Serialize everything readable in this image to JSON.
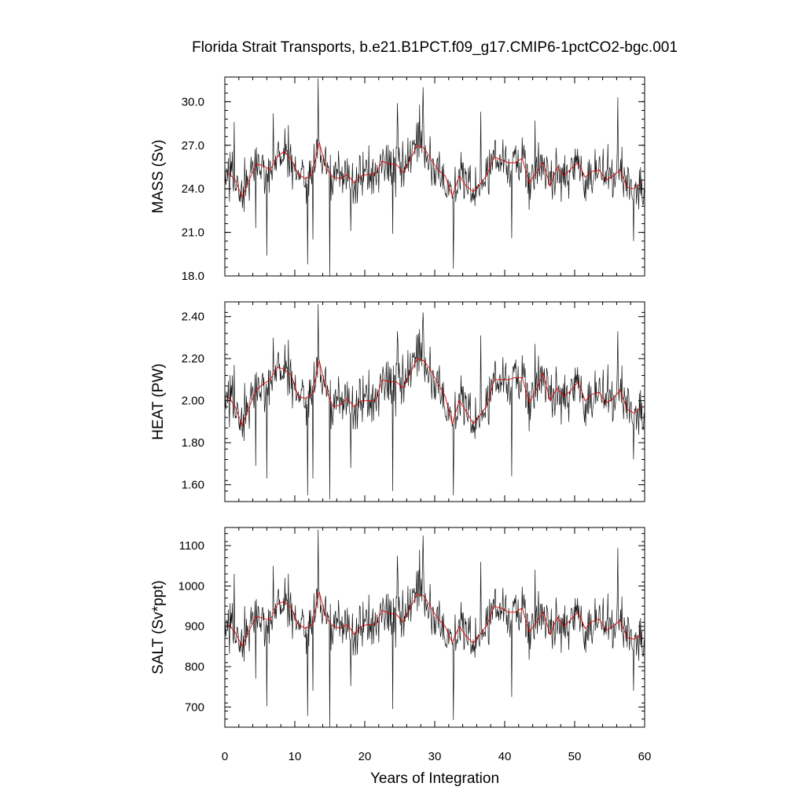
{
  "chart_data": {
    "type": "line",
    "title": "Florida Strait Transports, b.e21.B1PCT.f09_g17.CMIP6-1pctCO2-bgc.001",
    "xlabel": "Years of Integration",
    "xlim": [
      0,
      60
    ],
    "xticks": [
      0,
      10,
      20,
      30,
      40,
      50,
      60
    ],
    "xtick_labels": [
      "0",
      "10",
      "20",
      "30",
      "40",
      "50",
      "60"
    ],
    "series_colors": {
      "monthly": "#111111",
      "annual_smoothed": "#e00000"
    },
    "panels": [
      {
        "id": "mass",
        "ylabel": "MASS (Sv)",
        "ylim": [
          18.0,
          31.7
        ],
        "yticks": [
          18.0,
          21.0,
          24.0,
          27.0,
          30.0
        ],
        "ytick_labels": [
          "18.0",
          "21.0",
          "24.0",
          "27.0",
          "30.0"
        ],
        "yminor": 0.6,
        "mean": 25.2,
        "amp": 1.5,
        "smooth": [
          [
            0.5,
            25.1
          ],
          [
            1.5,
            24.6
          ],
          [
            2.5,
            23.4
          ],
          [
            3.5,
            24.6
          ],
          [
            4.5,
            25.7
          ],
          [
            5.5,
            25.6
          ],
          [
            6.5,
            25.3
          ],
          [
            7.5,
            26.2
          ],
          [
            8.5,
            26.6
          ],
          [
            9.5,
            26.0
          ],
          [
            10.5,
            25.0
          ],
          [
            11.5,
            24.7
          ],
          [
            12.5,
            25.0
          ],
          [
            13.5,
            27.2
          ],
          [
            14.5,
            25.4
          ],
          [
            15.5,
            24.8
          ],
          [
            16.5,
            24.7
          ],
          [
            17.5,
            25.0
          ],
          [
            18.5,
            24.4
          ],
          [
            19.5,
            24.9
          ],
          [
            20.5,
            25.0
          ],
          [
            21.5,
            25.0
          ],
          [
            22.5,
            25.9
          ],
          [
            23.5,
            25.7
          ],
          [
            24.5,
            25.7
          ],
          [
            25.5,
            25.1
          ],
          [
            26.5,
            26.0
          ],
          [
            27.5,
            27.0
          ],
          [
            28.5,
            26.8
          ],
          [
            29.5,
            26.0
          ],
          [
            30.5,
            25.3
          ],
          [
            31.5,
            24.9
          ],
          [
            32.5,
            23.5
          ],
          [
            33.5,
            24.9
          ],
          [
            34.5,
            24.2
          ],
          [
            35.5,
            23.8
          ],
          [
            36.5,
            24.3
          ],
          [
            37.5,
            25.0
          ],
          [
            38.5,
            26.2
          ],
          [
            39.5,
            26.0
          ],
          [
            40.5,
            25.8
          ],
          [
            41.5,
            25.8
          ],
          [
            42.5,
            26.1
          ],
          [
            43.5,
            24.4
          ],
          [
            44.5,
            25.1
          ],
          [
            45.5,
            25.8
          ],
          [
            46.5,
            24.2
          ],
          [
            47.5,
            25.5
          ],
          [
            48.5,
            24.9
          ],
          [
            49.5,
            25.4
          ],
          [
            50.5,
            25.8
          ],
          [
            51.5,
            24.8
          ],
          [
            52.5,
            25.2
          ],
          [
            53.5,
            25.3
          ],
          [
            54.5,
            24.6
          ],
          [
            55.5,
            24.9
          ],
          [
            56.5,
            25.3
          ],
          [
            57.5,
            24.1
          ],
          [
            58.5,
            24.0
          ],
          [
            59.5,
            24.4
          ]
        ],
        "spikes": [
          [
            13.3,
            31.6
          ],
          [
            28.3,
            31.0
          ],
          [
            15.0,
            18.0
          ],
          [
            32.7,
            18.5
          ],
          [
            11.8,
            18.8
          ],
          [
            4.4,
            21.3
          ],
          [
            6.0,
            19.4
          ],
          [
            12.6,
            20.5
          ],
          [
            41.0,
            20.6
          ],
          [
            58.4,
            20.4
          ],
          [
            18.0,
            21.1
          ],
          [
            24.0,
            20.9
          ],
          [
            56.2,
            30.3
          ],
          [
            27.8,
            29.8
          ],
          [
            24.7,
            29.9
          ],
          [
            36.6,
            29.3
          ],
          [
            6.9,
            29.2
          ],
          [
            1.3,
            28.6
          ],
          [
            44.3,
            28.7
          ]
        ]
      },
      {
        "id": "heat",
        "ylabel": "HEAT (PW)",
        "ylim": [
          1.52,
          2.47
        ],
        "yticks": [
          1.6,
          1.8,
          2.0,
          2.2,
          2.4
        ],
        "ytick_labels": [
          "1.60",
          "1.80",
          "2.00",
          "2.20",
          "2.40"
        ],
        "yminor": 0.05,
        "mean": 2.04,
        "amp": 0.11,
        "smooth": [
          [
            0.5,
            2.02
          ],
          [
            1.5,
            1.97
          ],
          [
            2.5,
            1.88
          ],
          [
            3.5,
            1.97
          ],
          [
            4.5,
            2.05
          ],
          [
            5.5,
            2.08
          ],
          [
            6.5,
            2.1
          ],
          [
            7.5,
            2.16
          ],
          [
            8.5,
            2.15
          ],
          [
            9.5,
            2.12
          ],
          [
            10.5,
            2.02
          ],
          [
            11.5,
            2.01
          ],
          [
            12.5,
            2.03
          ],
          [
            13.5,
            2.19
          ],
          [
            14.5,
            2.05
          ],
          [
            15.5,
            1.97
          ],
          [
            16.5,
            1.98
          ],
          [
            17.5,
            2.01
          ],
          [
            18.5,
            1.97
          ],
          [
            19.5,
            2.0
          ],
          [
            20.5,
            2.0
          ],
          [
            21.5,
            2.0
          ],
          [
            22.5,
            2.1
          ],
          [
            23.5,
            2.09
          ],
          [
            24.5,
            2.09
          ],
          [
            25.5,
            2.06
          ],
          [
            26.5,
            2.13
          ],
          [
            27.5,
            2.2
          ],
          [
            28.5,
            2.19
          ],
          [
            29.5,
            2.14
          ],
          [
            30.5,
            2.08
          ],
          [
            31.5,
            2.02
          ],
          [
            32.5,
            1.89
          ],
          [
            33.5,
            2.0
          ],
          [
            34.5,
            1.95
          ],
          [
            35.5,
            1.89
          ],
          [
            36.5,
            1.93
          ],
          [
            37.5,
            1.98
          ],
          [
            38.5,
            2.1
          ],
          [
            39.5,
            2.1
          ],
          [
            40.5,
            2.1
          ],
          [
            41.5,
            2.11
          ],
          [
            42.5,
            2.11
          ],
          [
            43.5,
            1.99
          ],
          [
            44.5,
            2.05
          ],
          [
            45.5,
            2.13
          ],
          [
            46.5,
            2.0
          ],
          [
            47.5,
            2.06
          ],
          [
            48.5,
            2.02
          ],
          [
            49.5,
            2.05
          ],
          [
            50.5,
            2.09
          ],
          [
            51.5,
            2.0
          ],
          [
            52.5,
            2.03
          ],
          [
            53.5,
            2.04
          ],
          [
            54.5,
            1.99
          ],
          [
            55.5,
            2.01
          ],
          [
            56.5,
            2.05
          ],
          [
            57.5,
            1.96
          ],
          [
            58.5,
            1.94
          ],
          [
            59.5,
            1.97
          ]
        ],
        "spikes": [
          [
            13.3,
            2.46
          ],
          [
            28.3,
            2.42
          ],
          [
            15.0,
            1.53
          ],
          [
            32.7,
            1.55
          ],
          [
            11.8,
            1.55
          ],
          [
            4.4,
            1.69
          ],
          [
            6.0,
            1.63
          ],
          [
            12.6,
            1.63
          ],
          [
            41.0,
            1.64
          ],
          [
            58.4,
            1.72
          ],
          [
            18.0,
            1.68
          ],
          [
            24.0,
            1.57
          ],
          [
            56.2,
            2.33
          ],
          [
            27.8,
            2.34
          ],
          [
            24.7,
            2.33
          ],
          [
            36.6,
            2.31
          ],
          [
            6.9,
            2.3
          ],
          [
            1.3,
            2.17
          ],
          [
            44.3,
            2.27
          ]
        ]
      },
      {
        "id": "salt",
        "ylabel": "SALT (Sv*ppt)",
        "ylim": [
          650,
          1145
        ],
        "yticks": [
          700,
          800,
          900,
          1000,
          1100
        ],
        "ytick_labels": [
          "700",
          "800",
          "900",
          "1000",
          "1100"
        ],
        "yminor": 20,
        "mean": 912,
        "amp": 55,
        "smooth": [
          [
            0.5,
            905
          ],
          [
            1.5,
            885
          ],
          [
            2.5,
            850
          ],
          [
            3.5,
            890
          ],
          [
            4.5,
            925
          ],
          [
            5.5,
            920
          ],
          [
            6.5,
            915
          ],
          [
            7.5,
            955
          ],
          [
            8.5,
            962
          ],
          [
            9.5,
            945
          ],
          [
            10.5,
            905
          ],
          [
            11.5,
            895
          ],
          [
            12.5,
            905
          ],
          [
            13.5,
            985
          ],
          [
            14.5,
            920
          ],
          [
            15.5,
            900
          ],
          [
            16.5,
            895
          ],
          [
            17.5,
            905
          ],
          [
            18.5,
            880
          ],
          [
            19.5,
            900
          ],
          [
            20.5,
            905
          ],
          [
            21.5,
            905
          ],
          [
            22.5,
            940
          ],
          [
            23.5,
            932
          ],
          [
            24.5,
            930
          ],
          [
            25.5,
            910
          ],
          [
            26.5,
            945
          ],
          [
            27.5,
            980
          ],
          [
            28.5,
            975
          ],
          [
            29.5,
            945
          ],
          [
            30.5,
            918
          ],
          [
            31.5,
            900
          ],
          [
            32.5,
            860
          ],
          [
            33.5,
            900
          ],
          [
            34.5,
            875
          ],
          [
            35.5,
            858
          ],
          [
            36.5,
            880
          ],
          [
            37.5,
            905
          ],
          [
            38.5,
            950
          ],
          [
            39.5,
            945
          ],
          [
            40.5,
            935
          ],
          [
            41.5,
            935
          ],
          [
            42.5,
            945
          ],
          [
            43.5,
            885
          ],
          [
            44.5,
            910
          ],
          [
            45.5,
            935
          ],
          [
            46.5,
            880
          ],
          [
            47.5,
            922
          ],
          [
            48.5,
            900
          ],
          [
            49.5,
            918
          ],
          [
            50.5,
            935
          ],
          [
            51.5,
            895
          ],
          [
            52.5,
            912
          ],
          [
            53.5,
            918
          ],
          [
            54.5,
            890
          ],
          [
            55.5,
            900
          ],
          [
            56.5,
            915
          ],
          [
            57.5,
            872
          ],
          [
            58.5,
            868
          ],
          [
            59.5,
            880
          ]
        ],
        "spikes": [
          [
            13.3,
            1140
          ],
          [
            28.3,
            1125
          ],
          [
            15.0,
            650
          ],
          [
            32.7,
            668
          ],
          [
            11.8,
            678
          ],
          [
            4.4,
            770
          ],
          [
            6.0,
            702
          ],
          [
            12.6,
            740
          ],
          [
            41.0,
            725
          ],
          [
            58.4,
            740
          ],
          [
            18.0,
            752
          ],
          [
            24.0,
            695
          ],
          [
            56.2,
            1095
          ],
          [
            27.8,
            1090
          ],
          [
            24.7,
            1075
          ],
          [
            36.6,
            1060
          ],
          [
            6.9,
            1050
          ],
          [
            1.3,
            1030
          ],
          [
            44.3,
            1040
          ]
        ]
      }
    ]
  }
}
